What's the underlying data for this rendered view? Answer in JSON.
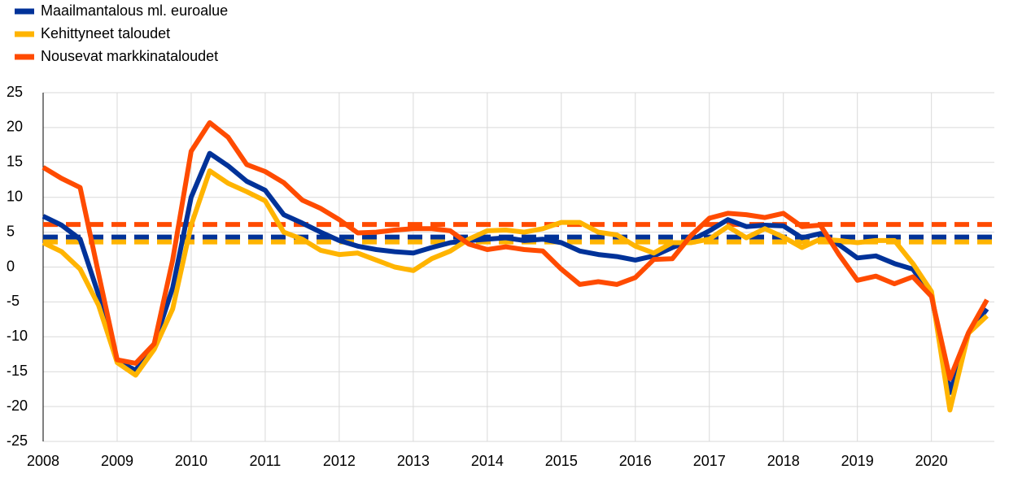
{
  "chart_data": {
    "type": "line",
    "x": [
      2008,
      2008.25,
      2008.5,
      2008.75,
      2009,
      2009.25,
      2009.5,
      2009.75,
      2010,
      2010.25,
      2010.5,
      2010.75,
      2011,
      2011.25,
      2011.5,
      2011.75,
      2012,
      2012.25,
      2012.5,
      2012.75,
      2013,
      2013.25,
      2013.5,
      2013.75,
      2014,
      2014.25,
      2014.5,
      2014.75,
      2015,
      2015.25,
      2015.5,
      2015.75,
      2016,
      2016.25,
      2016.5,
      2016.75,
      2017,
      2017.25,
      2017.5,
      2017.75,
      2018,
      2018.25,
      2018.5,
      2018.75,
      2019,
      2019.25,
      2019.5,
      2019.75,
      2020,
      2020.25,
      2020.5,
      2020.75
    ],
    "series": [
      {
        "name": "Maailmantalous ml. euroalue",
        "color": "#003299",
        "average": 4.3,
        "values": [
          7.3,
          6,
          4,
          -4,
          -13.5,
          -14.8,
          -11,
          -3,
          10,
          16.3,
          14.5,
          12.3,
          11,
          7.5,
          6.3,
          5,
          3.8,
          3,
          2.5,
          2.2,
          2,
          2.8,
          3.5,
          3.8,
          4,
          4.2,
          3.8,
          4,
          3.5,
          2.3,
          1.8,
          1.5,
          1,
          1.6,
          2.8,
          3.8,
          5.2,
          6.8,
          5.8,
          6,
          5.9,
          4.2,
          4.8,
          3.2,
          1.3,
          1.6,
          0.5,
          -0.3,
          -4,
          -18,
          -9.5,
          -6
        ]
      },
      {
        "name": "Kehittyneet taloudet",
        "color": "#ffb400",
        "average": 3.6,
        "values": [
          3.5,
          2.2,
          -0.3,
          -5.5,
          -13.7,
          -15.5,
          -11.8,
          -6,
          6,
          13.8,
          12,
          10.8,
          9.5,
          5,
          4,
          2.4,
          1.8,
          2,
          1,
          0,
          -0.5,
          1.2,
          2.3,
          4,
          5.2,
          5.3,
          5,
          5.5,
          6.4,
          6.4,
          5,
          4.6,
          3,
          2,
          3.5,
          3.5,
          4,
          5.8,
          4.2,
          5.5,
          4.3,
          2.8,
          4,
          3.8,
          3.5,
          3.8,
          3.8,
          0.5,
          -3.5,
          -20.5,
          -9.5,
          -7
        ]
      },
      {
        "name": "Nousevat markkinataloudet",
        "color": "#ff4b00",
        "average": 6.1,
        "values": [
          14.3,
          12.7,
          11.4,
          -1,
          -13.3,
          -13.8,
          -11,
          1,
          16.6,
          20.7,
          18.6,
          14.7,
          13.7,
          12.1,
          9.6,
          8.4,
          6.8,
          4.9,
          5,
          5.3,
          5.5,
          5.5,
          5.2,
          3.3,
          2.5,
          2.9,
          2.5,
          2.3,
          -0.3,
          -2.5,
          -2.1,
          -2.5,
          -1.5,
          1.1,
          1.2,
          4.5,
          7,
          7.7,
          7.5,
          7.1,
          7.7,
          5.8,
          6,
          1.8,
          -1.9,
          -1.3,
          -2.4,
          -1.4,
          -4.2,
          -16,
          -9.4,
          -4.7
        ]
      }
    ],
    "xlim": [
      2008,
      2020.85
    ],
    "xticks": [
      2008,
      2009,
      2010,
      2011,
      2012,
      2013,
      2014,
      2015,
      2016,
      2017,
      2018,
      2019,
      2020
    ],
    "ylim": [
      -25,
      25
    ],
    "yticks": [
      -25,
      -20,
      -15,
      -10,
      -5,
      0,
      5,
      10,
      15,
      20,
      25
    ],
    "grid": true,
    "legend": "top-left"
  }
}
